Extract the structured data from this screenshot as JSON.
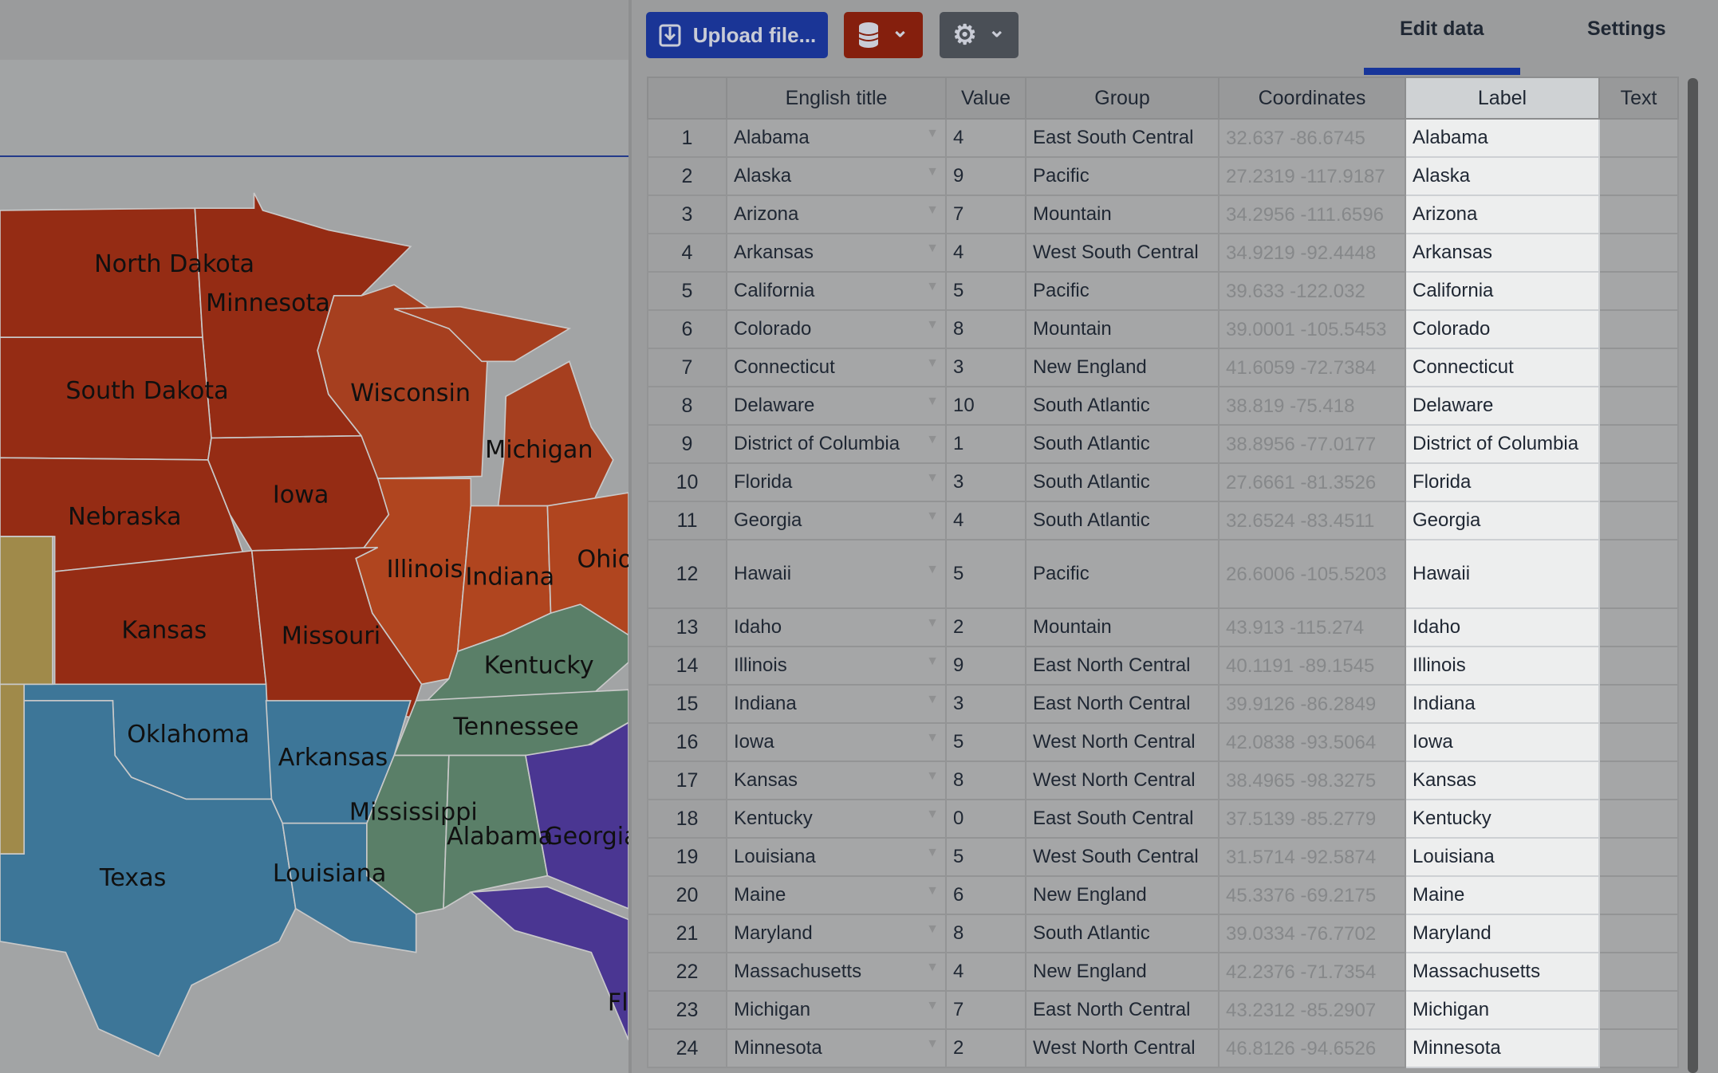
{
  "toolbar": {
    "upload_label": "Upload file...",
    "upload_icon": "upload-icon",
    "database_icon": "database-icon",
    "gear_icon": "gear-icon",
    "chevron": "⌄"
  },
  "tabs": [
    {
      "label": "Edit data",
      "active": true
    },
    {
      "label": "Settings",
      "active": false
    }
  ],
  "colors": {
    "accent": "#17359a",
    "database_button": "#851f0d",
    "gear_button": "#4a4f56"
  },
  "map": {
    "labels": [
      "North Dakota",
      "Minnesota",
      "South Dakota",
      "Wisconsin",
      "Michigan",
      "Iowa",
      "Nebraska",
      "Illinois",
      "Indiana",
      "Ohio",
      "Kansas",
      "Missouri",
      "Kentucky",
      "Oklahoma",
      "Tennessee",
      "Arkansas",
      "Mississippi",
      "Alabama",
      "Georgia",
      "Texas",
      "Louisiana",
      "Fl"
    ]
  },
  "table": {
    "columns": [
      "",
      "English title",
      "Value",
      "Group",
      "Coordinates",
      "Label",
      "Text"
    ],
    "rows": [
      [
        "1",
        "Alabama",
        "4",
        "East South Central",
        "32.637 -86.6745",
        "Alabama"
      ],
      [
        "2",
        "Alaska",
        "9",
        "Pacific",
        "27.2319 -117.9187",
        "Alaska"
      ],
      [
        "3",
        "Arizona",
        "7",
        "Mountain",
        "34.2956 -111.6596",
        "Arizona"
      ],
      [
        "4",
        "Arkansas",
        "4",
        "West South Central",
        "34.9219 -92.4448",
        "Arkansas"
      ],
      [
        "5",
        "California",
        "5",
        "Pacific",
        "39.633 -122.032",
        "California"
      ],
      [
        "6",
        "Colorado",
        "8",
        "Mountain",
        "39.0001 -105.5453",
        "Colorado"
      ],
      [
        "7",
        "Connecticut",
        "3",
        "New England",
        "41.6059 -72.7384",
        "Connecticut"
      ],
      [
        "8",
        "Delaware",
        "10",
        "South Atlantic",
        "38.819 -75.418",
        "Delaware"
      ],
      [
        "9",
        "District of Columbia",
        "1",
        "South Atlantic",
        "38.8956 -77.0177",
        "District of Columbia"
      ],
      [
        "10",
        "Florida",
        "3",
        "South Atlantic",
        "27.6661 -81.3526",
        "Florida"
      ],
      [
        "11",
        "Georgia",
        "4",
        "South Atlantic",
        "32.6524 -83.4511",
        "Georgia"
      ],
      [
        "12",
        "Hawaii",
        "5",
        "Pacific",
        "26.6006 -105.5203",
        "Hawaii"
      ],
      [
        "13",
        "Idaho",
        "2",
        "Mountain",
        "43.913 -115.274",
        "Idaho"
      ],
      [
        "14",
        "Illinois",
        "9",
        "East North Central",
        "40.1191 -89.1545",
        "Illinois"
      ],
      [
        "15",
        "Indiana",
        "3",
        "East North Central",
        "39.9126 -86.2849",
        "Indiana"
      ],
      [
        "16",
        "Iowa",
        "5",
        "West North Central",
        "42.0838 -93.5064",
        "Iowa"
      ],
      [
        "17",
        "Kansas",
        "8",
        "West North Central",
        "38.4965 -98.3275",
        "Kansas"
      ],
      [
        "18",
        "Kentucky",
        "0",
        "East South Central",
        "37.5139 -85.2779",
        "Kentucky"
      ],
      [
        "19",
        "Louisiana",
        "5",
        "West South Central",
        "31.5714 -92.5874",
        "Louisiana"
      ],
      [
        "20",
        "Maine",
        "6",
        "New England",
        "45.3376 -69.2175",
        "Maine"
      ],
      [
        "21",
        "Maryland",
        "8",
        "South Atlantic",
        "39.0334 -76.7702",
        "Maryland"
      ],
      [
        "22",
        "Massachusetts",
        "4",
        "New England",
        "42.2376 -71.7354",
        "Massachusetts"
      ],
      [
        "23",
        "Michigan",
        "7",
        "East North Central",
        "43.2312 -85.2907",
        "Michigan"
      ],
      [
        "24",
        "Minnesota",
        "2",
        "West North Central",
        "46.8126 -94.6526",
        "Minnesota"
      ]
    ]
  }
}
